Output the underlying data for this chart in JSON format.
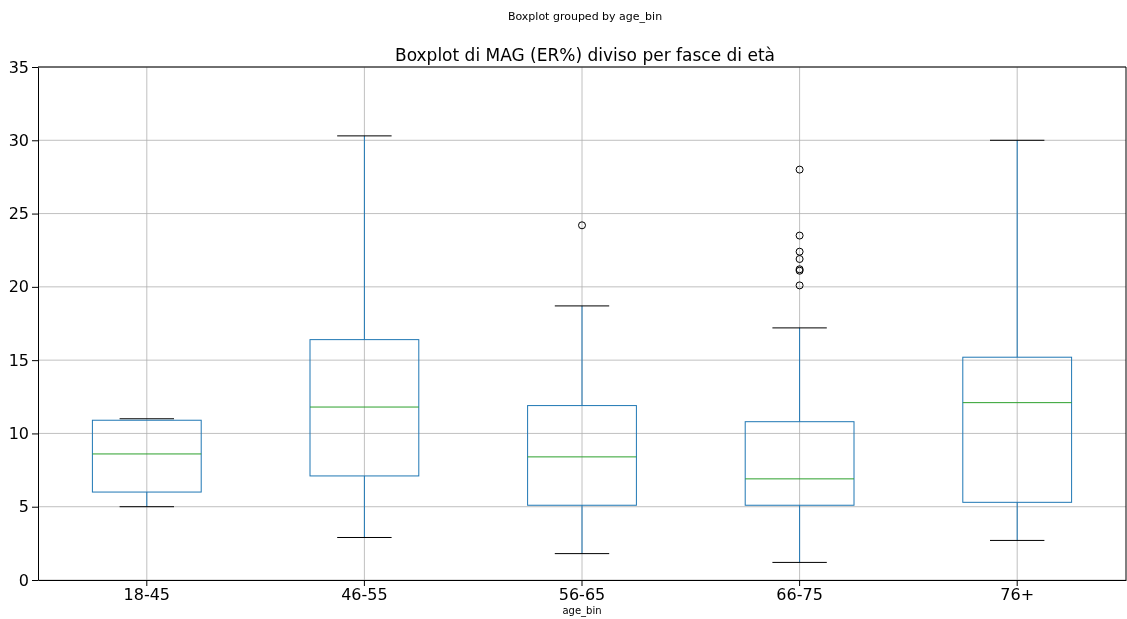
{
  "chart_data": {
    "type": "box",
    "title": "Boxplot grouped by age_bin",
    "subtitle": "Boxplot di MAG (ER%) diviso per fasce di età",
    "xlabel": "age_bin",
    "categories": [
      "18-45",
      "46-55",
      "56-65",
      "66-75",
      "76+"
    ],
    "color": "#1f77b4",
    "ylim": [
      0,
      35
    ],
    "yticks": [
      0,
      5,
      10,
      15,
      20,
      25,
      30,
      35
    ],
    "grid": true,
    "boxes": [
      {
        "low": 5.0,
        "q1": 6.0,
        "median": 8.6,
        "q3": 10.9,
        "high": 11.0
      },
      {
        "low": 2.9,
        "q1": 7.1,
        "median": 11.8,
        "q3": 16.4,
        "high": 30.3
      },
      {
        "low": 1.8,
        "q1": 5.1,
        "median": 8.4,
        "q3": 11.9,
        "high": 18.7,
        "outliers": [
          24.2
        ]
      },
      {
        "low": 1.2,
        "q1": 5.1,
        "median": 6.9,
        "q3": 10.8,
        "high": 17.2,
        "outliers": [
          28.0,
          23.5,
          22.4,
          21.9,
          21.2,
          21.1,
          20.1
        ]
      },
      {
        "low": 2.7,
        "q1": 5.3,
        "median": 12.1,
        "q3": 15.2,
        "high": 30.0
      }
    ]
  }
}
